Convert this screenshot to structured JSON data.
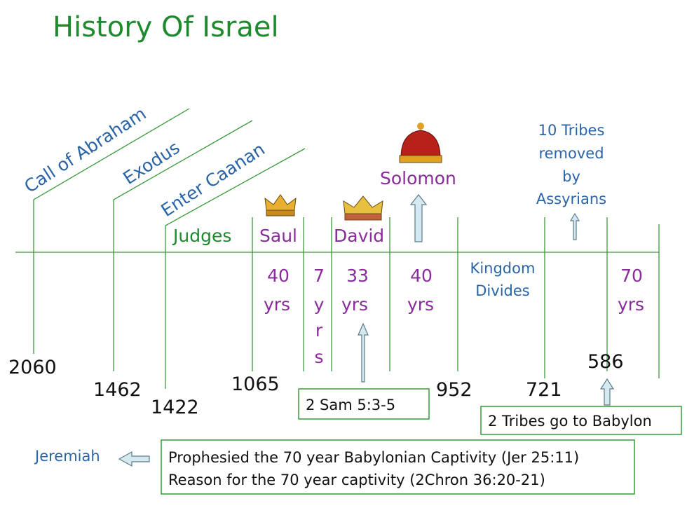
{
  "header": {
    "title": "History Of Israel"
  },
  "events": {
    "abraham": "Call of Abraham",
    "exodus": "Exodus",
    "caanan": "Enter Caanan"
  },
  "periods": {
    "judges": "Judges",
    "saul": "Saul",
    "david": "David",
    "solomon": "Solomon"
  },
  "durations": {
    "saul": [
      "40",
      "yrs"
    ],
    "ishbosheth": [
      "7",
      "y",
      "r",
      "s"
    ],
    "david": [
      "33",
      "yrs"
    ],
    "solomon": [
      "40",
      "yrs"
    ],
    "divides": [
      "Kingdom",
      "Divides"
    ],
    "captivity": [
      "70",
      "yrs"
    ]
  },
  "years": [
    "2060",
    "1462",
    "1422",
    "1065",
    "952",
    "721",
    "586"
  ],
  "assyria": [
    "10 Tribes",
    "removed",
    "by",
    "Assyrians"
  ],
  "notes": {
    "sam": "2 Sam 5:3-5",
    "babylon": "2 Tribes go to Babylon",
    "jeremiah": "Jeremiah",
    "prophecy": [
      "Prophesied the 70 year Babylonian Captivity (Jer 25:11)",
      "Reason for the 70 year captivity (2Chron 36:20-21)"
    ]
  }
}
